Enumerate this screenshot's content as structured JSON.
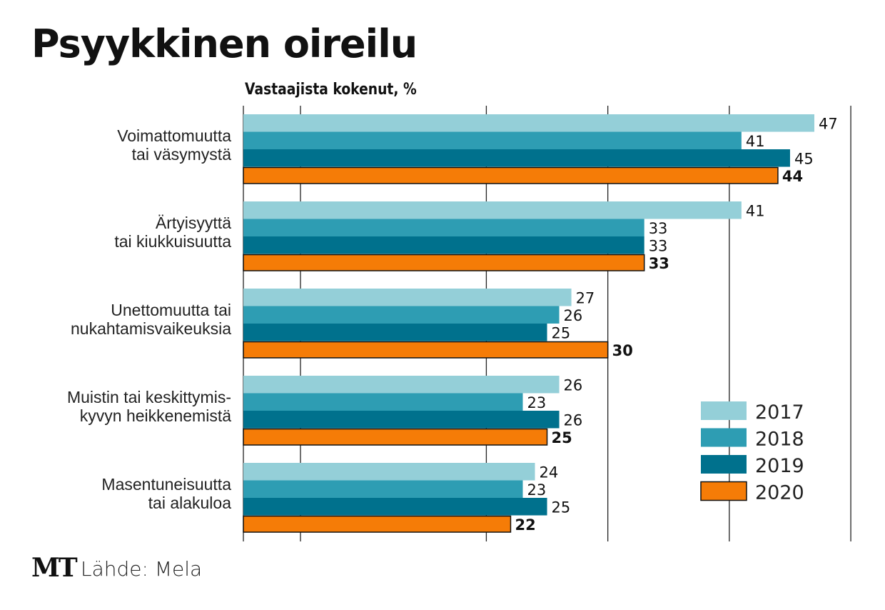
{
  "chart_data": {
    "type": "bar",
    "orientation": "horizontal",
    "title": "Psyykkinen oireilu",
    "subtitle": "Vastaajista kokenut, %",
    "categories": [
      [
        "Voimattomuutta",
        "tai väsymystä"
      ],
      [
        "Ärtyisyyttä",
        "tai kiukkuisuutta"
      ],
      [
        "Unettomuutta tai",
        "nukahtamisvaikeuksia"
      ],
      [
        "Muistin tai keskittymis-",
        "kyvyn heikkenemistä"
      ],
      [
        "Masentuneisuutta",
        "tai alakuloa"
      ]
    ],
    "series": [
      {
        "name": "2017",
        "color": "#94cfd8",
        "values": [
          47,
          41,
          27,
          26,
          24
        ]
      },
      {
        "name": "2018",
        "color": "#2e9db3",
        "values": [
          41,
          33,
          26,
          23,
          23
        ]
      },
      {
        "name": "2019",
        "color": "#00718d",
        "values": [
          45,
          33,
          25,
          26,
          25
        ]
      },
      {
        "name": "2020",
        "color": "#f57c07",
        "values": [
          44,
          33,
          30,
          25,
          22
        ]
      }
    ],
    "xlim": [
      0,
      50
    ],
    "gridlines": [
      0,
      4.7,
      20,
      30,
      40,
      50
    ],
    "legend": "bottom-right"
  },
  "footer": {
    "logo": "MT",
    "source": "Lähde: Mela"
  }
}
